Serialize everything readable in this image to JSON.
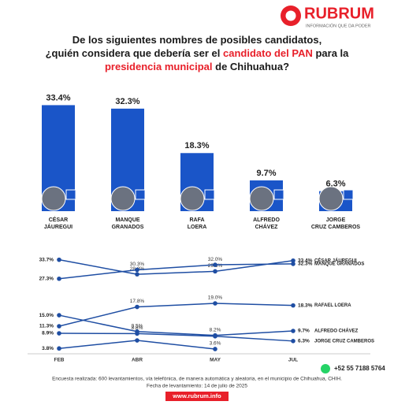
{
  "logo": {
    "name": "RUBRUM",
    "tagline": "INFORMACIÓN QUE DA PODER"
  },
  "title_lines": [
    [
      {
        "text": "De los siguientes nombres de posibles candidatos,",
        "highlight": false
      }
    ],
    [
      {
        "text": "¿quién considera que debería ser el ",
        "highlight": false
      },
      {
        "text": "candidato del PAN",
        "highlight": true
      },
      {
        "text": " para la",
        "highlight": false
      }
    ],
    [
      {
        "text": "presidencia municipal",
        "highlight": true
      },
      {
        "text": " de Chihuahua?",
        "highlight": false
      }
    ]
  ],
  "title_highlight_color": "#e8202a",
  "chart_data": [
    {
      "type": "bar",
      "categories": [
        "CÉSAR JÁUREGUI",
        "MANQUE GRANADOS",
        "RAFA LOERA",
        "ALFREDO CHÁVEZ",
        "JORGE CRUZ CAMBEROS"
      ],
      "values": [
        33.4,
        32.3,
        18.3,
        9.7,
        6.3
      ],
      "value_labels": [
        "33.4%",
        "32.3%",
        "18.3%",
        "9.7%",
        "6.3%"
      ],
      "color": "#1a55c8",
      "ylim": [
        0,
        35
      ]
    },
    {
      "type": "line",
      "categories": [
        "FEB",
        "ABR",
        "MAY",
        "JUL"
      ],
      "ylim": [
        2,
        36
      ],
      "series": [
        {
          "name": "CÉSAR JÁUREGUI",
          "color": "#1f4ea3",
          "values": [
            33.7,
            28.8,
            29.8,
            33.4
          ],
          "value_labels": [
            "33.7%",
            "28.8%",
            "29.8%",
            "33.4%"
          ]
        },
        {
          "name": "MANQUE GRANADOS",
          "color": "#1f4ea3",
          "values": [
            27.3,
            30.3,
            32.0,
            32.3
          ],
          "value_labels": [
            "27.3%",
            "30.3%",
            "32.0%",
            "32.3%"
          ]
        },
        {
          "name": "RAFAEL LOERA",
          "color": "#1f4ea3",
          "values": [
            11.3,
            17.8,
            19.0,
            18.3
          ],
          "value_labels": [
            "11.3%",
            "17.8%",
            "19.0%",
            "18.3%"
          ]
        },
        {
          "name": "ALFREDO CHÁVEZ",
          "color": "#1f4ea3",
          "values": [
            15.0,
            9.5,
            8.2,
            9.7
          ],
          "value_labels": [
            "15.0%",
            "9.5%",
            "8.2%",
            "9.7%"
          ]
        },
        {
          "name": "JORGE CRUZ CAMBEROS",
          "color": "#1f4ea3",
          "values": [
            8.9,
            8.8,
            7.9,
            6.3
          ],
          "value_labels": [
            "8.9%",
            "8.8%",
            null,
            "6.3%"
          ]
        },
        {
          "color": "#1f4ea3",
          "values": [
            3.8,
            6.5,
            3.6,
            null
          ],
          "value_labels": [
            "3.8%",
            null,
            "3.6%",
            null
          ]
        }
      ]
    }
  ],
  "phone": "+52 55 7188 5764",
  "footer": {
    "note": "Encuesta realizada: 600 levantamientos, vía telefónica, de manera automática y aleatoria, en el municipio de Chihuahua, CHIH.",
    "date": "Fecha de levantamiento: 14 de julio de 2025",
    "url": "www.rubrum.info"
  }
}
